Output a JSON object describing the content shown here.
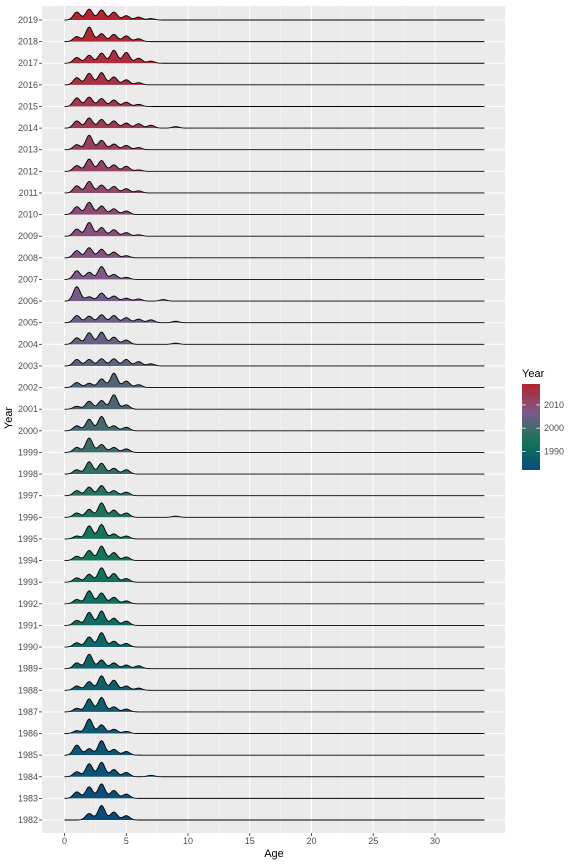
{
  "chart_data": {
    "type": "ridgeline",
    "title": "",
    "xlabel": "Age",
    "ylabel": "Year",
    "xlim": [
      -1,
      35
    ],
    "x_ticks": [
      0,
      5,
      10,
      15,
      20,
      25,
      30
    ],
    "x_tick_labels": [
      "0",
      "5",
      "10",
      "15",
      "20",
      "25",
      "30"
    ],
    "categories": [
      "1982",
      "1983",
      "1984",
      "1985",
      "1986",
      "1987",
      "1988",
      "1989",
      "1990",
      "1991",
      "1992",
      "1993",
      "1994",
      "1995",
      "1996",
      "1997",
      "1998",
      "1999",
      "2000",
      "2001",
      "2002",
      "2003",
      "2004",
      "2005",
      "2006",
      "2007",
      "2008",
      "2009",
      "2010",
      "2011",
      "2012",
      "2013",
      "2014",
      "2015",
      "2016",
      "2017",
      "2018",
      "2019"
    ],
    "age_max": 34,
    "series": [
      {
        "year": 1982,
        "peaks": [
          [
            2,
            0.45
          ],
          [
            3,
            1.0
          ],
          [
            4,
            0.55
          ],
          [
            5,
            0.3
          ]
        ]
      },
      {
        "year": 1983,
        "peaks": [
          [
            1,
            0.45
          ],
          [
            2,
            0.8
          ],
          [
            3,
            1.0
          ],
          [
            4,
            0.55
          ],
          [
            5,
            0.3
          ]
        ]
      },
      {
        "year": 1984,
        "peaks": [
          [
            1,
            0.35
          ],
          [
            2,
            0.9
          ],
          [
            3,
            1.0
          ],
          [
            4,
            0.5
          ],
          [
            5,
            0.3
          ],
          [
            7,
            0.1
          ]
        ]
      },
      {
        "year": 1985,
        "peaks": [
          [
            1,
            0.7
          ],
          [
            2,
            0.45
          ],
          [
            3,
            1.0
          ],
          [
            4,
            0.4
          ],
          [
            5,
            0.25
          ]
        ]
      },
      {
        "year": 1986,
        "peaks": [
          [
            1,
            0.2
          ],
          [
            2,
            1.0
          ],
          [
            3,
            0.6
          ],
          [
            4,
            0.3
          ],
          [
            5,
            0.15
          ]
        ]
      },
      {
        "year": 1987,
        "peaks": [
          [
            1,
            0.25
          ],
          [
            2,
            0.9
          ],
          [
            3,
            1.0
          ],
          [
            4,
            0.35
          ],
          [
            5,
            0.2
          ]
        ]
      },
      {
        "year": 1988,
        "peaks": [
          [
            1,
            0.3
          ],
          [
            2,
            0.6
          ],
          [
            3,
            1.0
          ],
          [
            4,
            0.7
          ],
          [
            5,
            0.3
          ],
          [
            6,
            0.15
          ]
        ]
      },
      {
        "year": 1989,
        "peaks": [
          [
            1,
            0.4
          ],
          [
            2,
            1.0
          ],
          [
            3,
            0.6
          ],
          [
            4,
            0.4
          ],
          [
            5,
            0.25
          ],
          [
            6,
            0.2
          ]
        ]
      },
      {
        "year": 1990,
        "peaks": [
          [
            1,
            0.3
          ],
          [
            2,
            0.7
          ],
          [
            3,
            1.0
          ],
          [
            4,
            0.4
          ],
          [
            5,
            0.25
          ]
        ]
      },
      {
        "year": 1991,
        "peaks": [
          [
            1,
            0.35
          ],
          [
            2,
            0.9
          ],
          [
            3,
            1.0
          ],
          [
            4,
            0.5
          ],
          [
            5,
            0.3
          ]
        ]
      },
      {
        "year": 1992,
        "peaks": [
          [
            1,
            0.3
          ],
          [
            2,
            0.9
          ],
          [
            3,
            0.75
          ],
          [
            4,
            0.45
          ],
          [
            5,
            0.2
          ]
        ]
      },
      {
        "year": 1993,
        "peaks": [
          [
            1,
            0.3
          ],
          [
            2,
            0.55
          ],
          [
            3,
            1.0
          ],
          [
            4,
            0.6
          ],
          [
            5,
            0.25
          ]
        ]
      },
      {
        "year": 1994,
        "peaks": [
          [
            1,
            0.3
          ],
          [
            2,
            0.7
          ],
          [
            3,
            1.0
          ],
          [
            4,
            0.55
          ],
          [
            5,
            0.25
          ]
        ]
      },
      {
        "year": 1995,
        "peaks": [
          [
            1,
            0.2
          ],
          [
            2,
            0.9
          ],
          [
            3,
            1.0
          ],
          [
            4,
            0.35
          ],
          [
            5,
            0.2
          ]
        ]
      },
      {
        "year": 1996,
        "peaks": [
          [
            1,
            0.3
          ],
          [
            2,
            0.55
          ],
          [
            3,
            1.0
          ],
          [
            4,
            0.5
          ],
          [
            5,
            0.3
          ],
          [
            9,
            0.08
          ]
        ]
      },
      {
        "year": 1997,
        "peaks": [
          [
            1,
            0.35
          ],
          [
            2,
            0.6
          ],
          [
            3,
            0.7
          ],
          [
            4,
            0.35
          ],
          [
            5,
            0.25
          ]
        ]
      },
      {
        "year": 1998,
        "peaks": [
          [
            1,
            0.3
          ],
          [
            2,
            0.85
          ],
          [
            3,
            0.75
          ],
          [
            4,
            0.4
          ],
          [
            5,
            0.3
          ]
        ]
      },
      {
        "year": 1999,
        "peaks": [
          [
            1,
            0.35
          ],
          [
            2,
            1.0
          ],
          [
            3,
            0.55
          ],
          [
            4,
            0.35
          ],
          [
            5,
            0.25
          ]
        ]
      },
      {
        "year": 2000,
        "peaks": [
          [
            1,
            0.35
          ],
          [
            2,
            0.8
          ],
          [
            3,
            1.0
          ],
          [
            4,
            0.35
          ],
          [
            5,
            0.25
          ]
        ]
      },
      {
        "year": 2001,
        "peaks": [
          [
            1,
            0.2
          ],
          [
            2,
            0.55
          ],
          [
            3,
            0.6
          ],
          [
            4,
            1.0
          ],
          [
            5,
            0.3
          ]
        ]
      },
      {
        "year": 2002,
        "peaks": [
          [
            1,
            0.35
          ],
          [
            2,
            0.3
          ],
          [
            3,
            0.6
          ],
          [
            4,
            1.0
          ],
          [
            5,
            0.45
          ],
          [
            6,
            0.2
          ]
        ]
      },
      {
        "year": 2003,
        "peaks": [
          [
            1,
            0.45
          ],
          [
            2,
            0.45
          ],
          [
            3,
            0.5
          ],
          [
            4,
            0.5
          ],
          [
            5,
            0.45
          ],
          [
            6,
            0.3
          ],
          [
            7,
            0.15
          ]
        ]
      },
      {
        "year": 2004,
        "peaks": [
          [
            1,
            0.45
          ],
          [
            2,
            0.8
          ],
          [
            3,
            0.85
          ],
          [
            4,
            0.5
          ],
          [
            5,
            0.3
          ],
          [
            9,
            0.08
          ]
        ]
      },
      {
        "year": 2005,
        "peaks": [
          [
            1,
            0.5
          ],
          [
            2,
            0.45
          ],
          [
            3,
            0.55
          ],
          [
            4,
            0.5
          ],
          [
            5,
            0.35
          ],
          [
            6,
            0.25
          ],
          [
            7,
            0.2
          ],
          [
            9,
            0.1
          ]
        ]
      },
      {
        "year": 2006,
        "peaks": [
          [
            1,
            1.0
          ],
          [
            2,
            0.3
          ],
          [
            3,
            0.55
          ],
          [
            4,
            0.35
          ],
          [
            5,
            0.2
          ],
          [
            6,
            0.15
          ],
          [
            8,
            0.1
          ]
        ]
      },
      {
        "year": 2007,
        "peaks": [
          [
            1,
            0.6
          ],
          [
            2,
            0.5
          ],
          [
            3,
            0.9
          ],
          [
            4,
            0.35
          ],
          [
            5,
            0.15
          ]
        ]
      },
      {
        "year": 2008,
        "peaks": [
          [
            1,
            0.5
          ],
          [
            2,
            0.7
          ],
          [
            3,
            0.6
          ],
          [
            4,
            0.4
          ],
          [
            5,
            0.15
          ]
        ]
      },
      {
        "year": 2009,
        "peaks": [
          [
            1,
            0.5
          ],
          [
            2,
            0.95
          ],
          [
            3,
            0.6
          ],
          [
            4,
            0.45
          ],
          [
            5,
            0.25
          ],
          [
            6,
            0.1
          ]
        ]
      },
      {
        "year": 2010,
        "peaks": [
          [
            1,
            0.55
          ],
          [
            2,
            0.85
          ],
          [
            3,
            0.6
          ],
          [
            4,
            0.4
          ],
          [
            5,
            0.25
          ]
        ]
      },
      {
        "year": 2011,
        "peaks": [
          [
            1,
            0.5
          ],
          [
            2,
            0.8
          ],
          [
            3,
            0.55
          ],
          [
            4,
            0.45
          ],
          [
            5,
            0.3
          ],
          [
            6,
            0.15
          ]
        ]
      },
      {
        "year": 2012,
        "peaks": [
          [
            1,
            0.4
          ],
          [
            2,
            0.85
          ],
          [
            3,
            0.75
          ],
          [
            4,
            0.45
          ],
          [
            5,
            0.35
          ],
          [
            6,
            0.1
          ]
        ]
      },
      {
        "year": 2013,
        "peaks": [
          [
            1,
            0.35
          ],
          [
            2,
            1.0
          ],
          [
            3,
            0.65
          ],
          [
            4,
            0.4
          ],
          [
            5,
            0.3
          ],
          [
            6,
            0.15
          ]
        ]
      },
      {
        "year": 2014,
        "peaks": [
          [
            1,
            0.5
          ],
          [
            2,
            0.7
          ],
          [
            3,
            0.6
          ],
          [
            4,
            0.5
          ],
          [
            5,
            0.35
          ],
          [
            6,
            0.3
          ],
          [
            7,
            0.2
          ],
          [
            9,
            0.1
          ]
        ]
      },
      {
        "year": 2015,
        "peaks": [
          [
            1,
            0.6
          ],
          [
            2,
            0.65
          ],
          [
            3,
            0.55
          ],
          [
            4,
            0.45
          ],
          [
            5,
            0.3
          ],
          [
            6,
            0.15
          ]
        ]
      },
      {
        "year": 2016,
        "peaks": [
          [
            1,
            0.5
          ],
          [
            2,
            0.8
          ],
          [
            3,
            0.85
          ],
          [
            4,
            0.55
          ],
          [
            5,
            0.35
          ],
          [
            6,
            0.15
          ]
        ]
      },
      {
        "year": 2017,
        "peaks": [
          [
            1,
            0.4
          ],
          [
            2,
            0.55
          ],
          [
            3,
            0.7
          ],
          [
            4,
            0.9
          ],
          [
            5,
            0.75
          ],
          [
            6,
            0.35
          ],
          [
            7,
            0.15
          ]
        ]
      },
      {
        "year": 2018,
        "peaks": [
          [
            1,
            0.35
          ],
          [
            2,
            1.0
          ],
          [
            3,
            0.55
          ],
          [
            4,
            0.5
          ],
          [
            5,
            0.4
          ],
          [
            6,
            0.2
          ]
        ]
      },
      {
        "year": 2019,
        "peaks": [
          [
            1,
            0.55
          ],
          [
            2,
            0.75
          ],
          [
            3,
            0.7
          ],
          [
            4,
            0.55
          ],
          [
            5,
            0.3
          ],
          [
            6,
            0.2
          ],
          [
            7,
            0.1
          ]
        ]
      }
    ],
    "legend": {
      "title": "Year",
      "position": "right",
      "ticks": [
        1990,
        2000,
        2010
      ],
      "tick_labels": [
        "1990",
        "2000",
        "2010"
      ],
      "range": [
        1982,
        2019
      ],
      "colors": [
        "#0b4b7c",
        "#137558",
        "#7b5a8a",
        "#b3242f"
      ]
    },
    "grid": true,
    "panel_color": "#ebebeb",
    "grid_color": "#ffffff"
  }
}
